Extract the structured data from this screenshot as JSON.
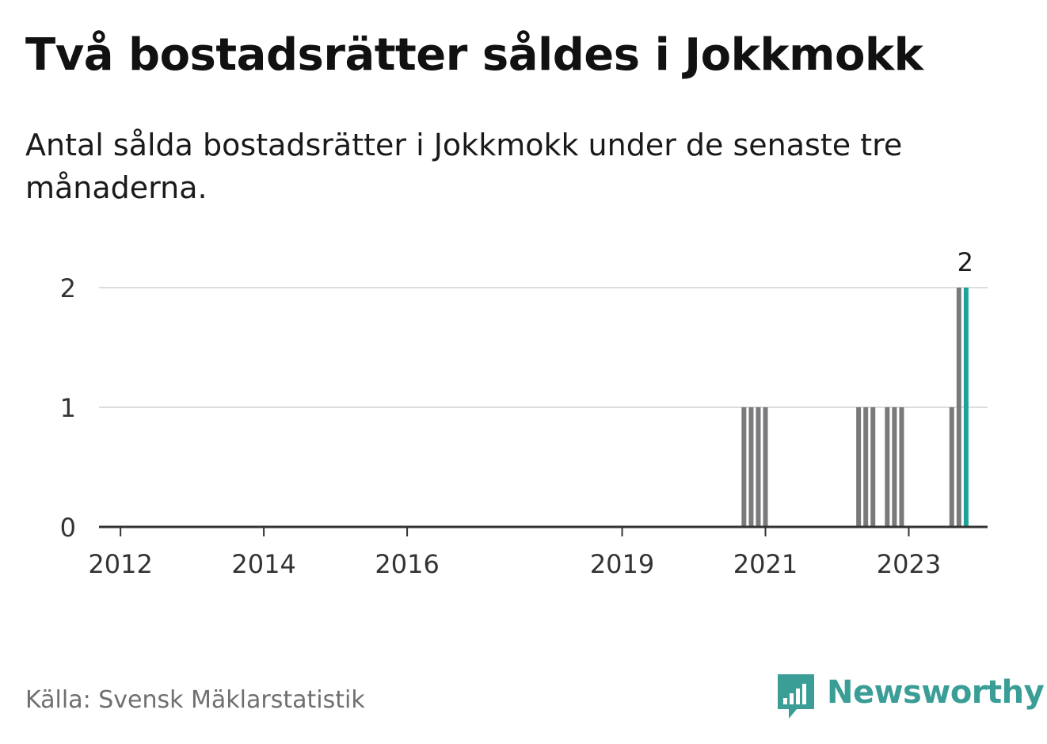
{
  "title": "Två bostadsrätter såldes i Jokkmokk",
  "subtitle": "Antal sålda bostadsrätter i Jokkmokk under de senaste tre månaderna.",
  "source": "Källa: Svensk Mäklarstatistik",
  "brand": {
    "name": "Newsworthy",
    "icon": "newsworthy-logo-icon",
    "color": "#3a9e97"
  },
  "chart_data": {
    "type": "bar",
    "ylim": [
      0,
      2
    ],
    "yticks": [
      "0",
      "1",
      "2"
    ],
    "xlim": [
      2011.7,
      2024.1
    ],
    "xticks": [
      {
        "label": "2012",
        "value": 2012.0
      },
      {
        "label": "2014",
        "value": 2014.0
      },
      {
        "label": "2016",
        "value": 2016.0
      },
      {
        "label": "2019",
        "value": 2019.0
      },
      {
        "label": "2021",
        "value": 2021.0
      },
      {
        "label": "2023",
        "value": 2023.0
      }
    ],
    "grid": true,
    "colors": {
      "bar": "#7a7a7d",
      "highlight": "#1aa39a",
      "grid": "#dddddd",
      "axis": "#333333"
    },
    "bars": [
      {
        "x": 2020.7,
        "value": 1
      },
      {
        "x": 2020.8,
        "value": 1
      },
      {
        "x": 2020.9,
        "value": 1
      },
      {
        "x": 2021.0,
        "value": 1
      },
      {
        "x": 2022.3,
        "value": 1
      },
      {
        "x": 2022.4,
        "value": 1
      },
      {
        "x": 2022.5,
        "value": 1
      },
      {
        "x": 2022.7,
        "value": 1
      },
      {
        "x": 2022.8,
        "value": 1
      },
      {
        "x": 2022.9,
        "value": 1
      },
      {
        "x": 2023.6,
        "value": 1
      },
      {
        "x": 2023.7,
        "value": 2
      },
      {
        "x": 2023.8,
        "value": 2,
        "highlight": true,
        "label": "2"
      }
    ]
  }
}
